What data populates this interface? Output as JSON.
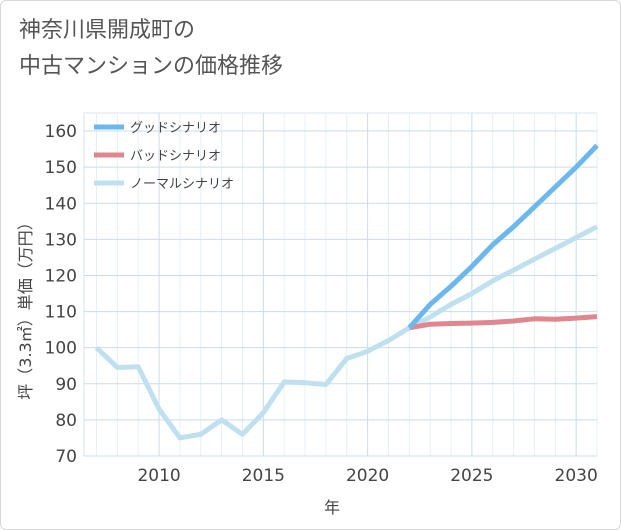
{
  "title": "神奈川県開成町の\n中古マンションの価格推移",
  "chart_data": {
    "type": "line",
    "xlabel": "年",
    "ylabel": "坪（3.3㎡）単価（万円）",
    "xlim": [
      2006.4,
      2031
    ],
    "ylim": [
      70,
      165
    ],
    "xticks": [
      2010,
      2015,
      2020,
      2025,
      2030
    ],
    "yticks": [
      70,
      80,
      90,
      100,
      110,
      120,
      130,
      140,
      150,
      160
    ],
    "grid": true,
    "legend_position": "top-left",
    "series": [
      {
        "name": "グッドシナリオ",
        "color": "#6cb8ee",
        "x": [
          2022,
          2023,
          2024,
          2025,
          2026,
          2027,
          2028,
          2029,
          2030,
          2031
        ],
        "y": [
          105.5,
          112,
          117,
          122.5,
          128.5,
          133.5,
          139,
          144.5,
          150,
          156
        ]
      },
      {
        "name": "バッドシナリオ",
        "color": "#e0868f",
        "x": [
          2022,
          2023,
          2024,
          2025,
          2026,
          2027,
          2028,
          2029,
          2030,
          2031
        ],
        "y": [
          105.5,
          106.5,
          106.7,
          106.8,
          107,
          107.4,
          108,
          107.9,
          108.2,
          108.6
        ]
      },
      {
        "name": "ノーマルシナリオ",
        "color": "#bfe0ef",
        "x": [
          2007,
          2008,
          2009,
          2010,
          2011,
          2012,
          2013,
          2014,
          2015,
          2016,
          2017,
          2018,
          2019,
          2020,
          2021,
          2022,
          2023,
          2024,
          2025,
          2026,
          2027,
          2028,
          2029,
          2030,
          2031
        ],
        "y": [
          100,
          94.5,
          94.7,
          83,
          75,
          76,
          80,
          76,
          82,
          90.5,
          90.3,
          89.8,
          97,
          99,
          102,
          105.5,
          108.5,
          112,
          115,
          118.5,
          121.5,
          124.5,
          127.5,
          130.5,
          133.5
        ]
      }
    ]
  }
}
